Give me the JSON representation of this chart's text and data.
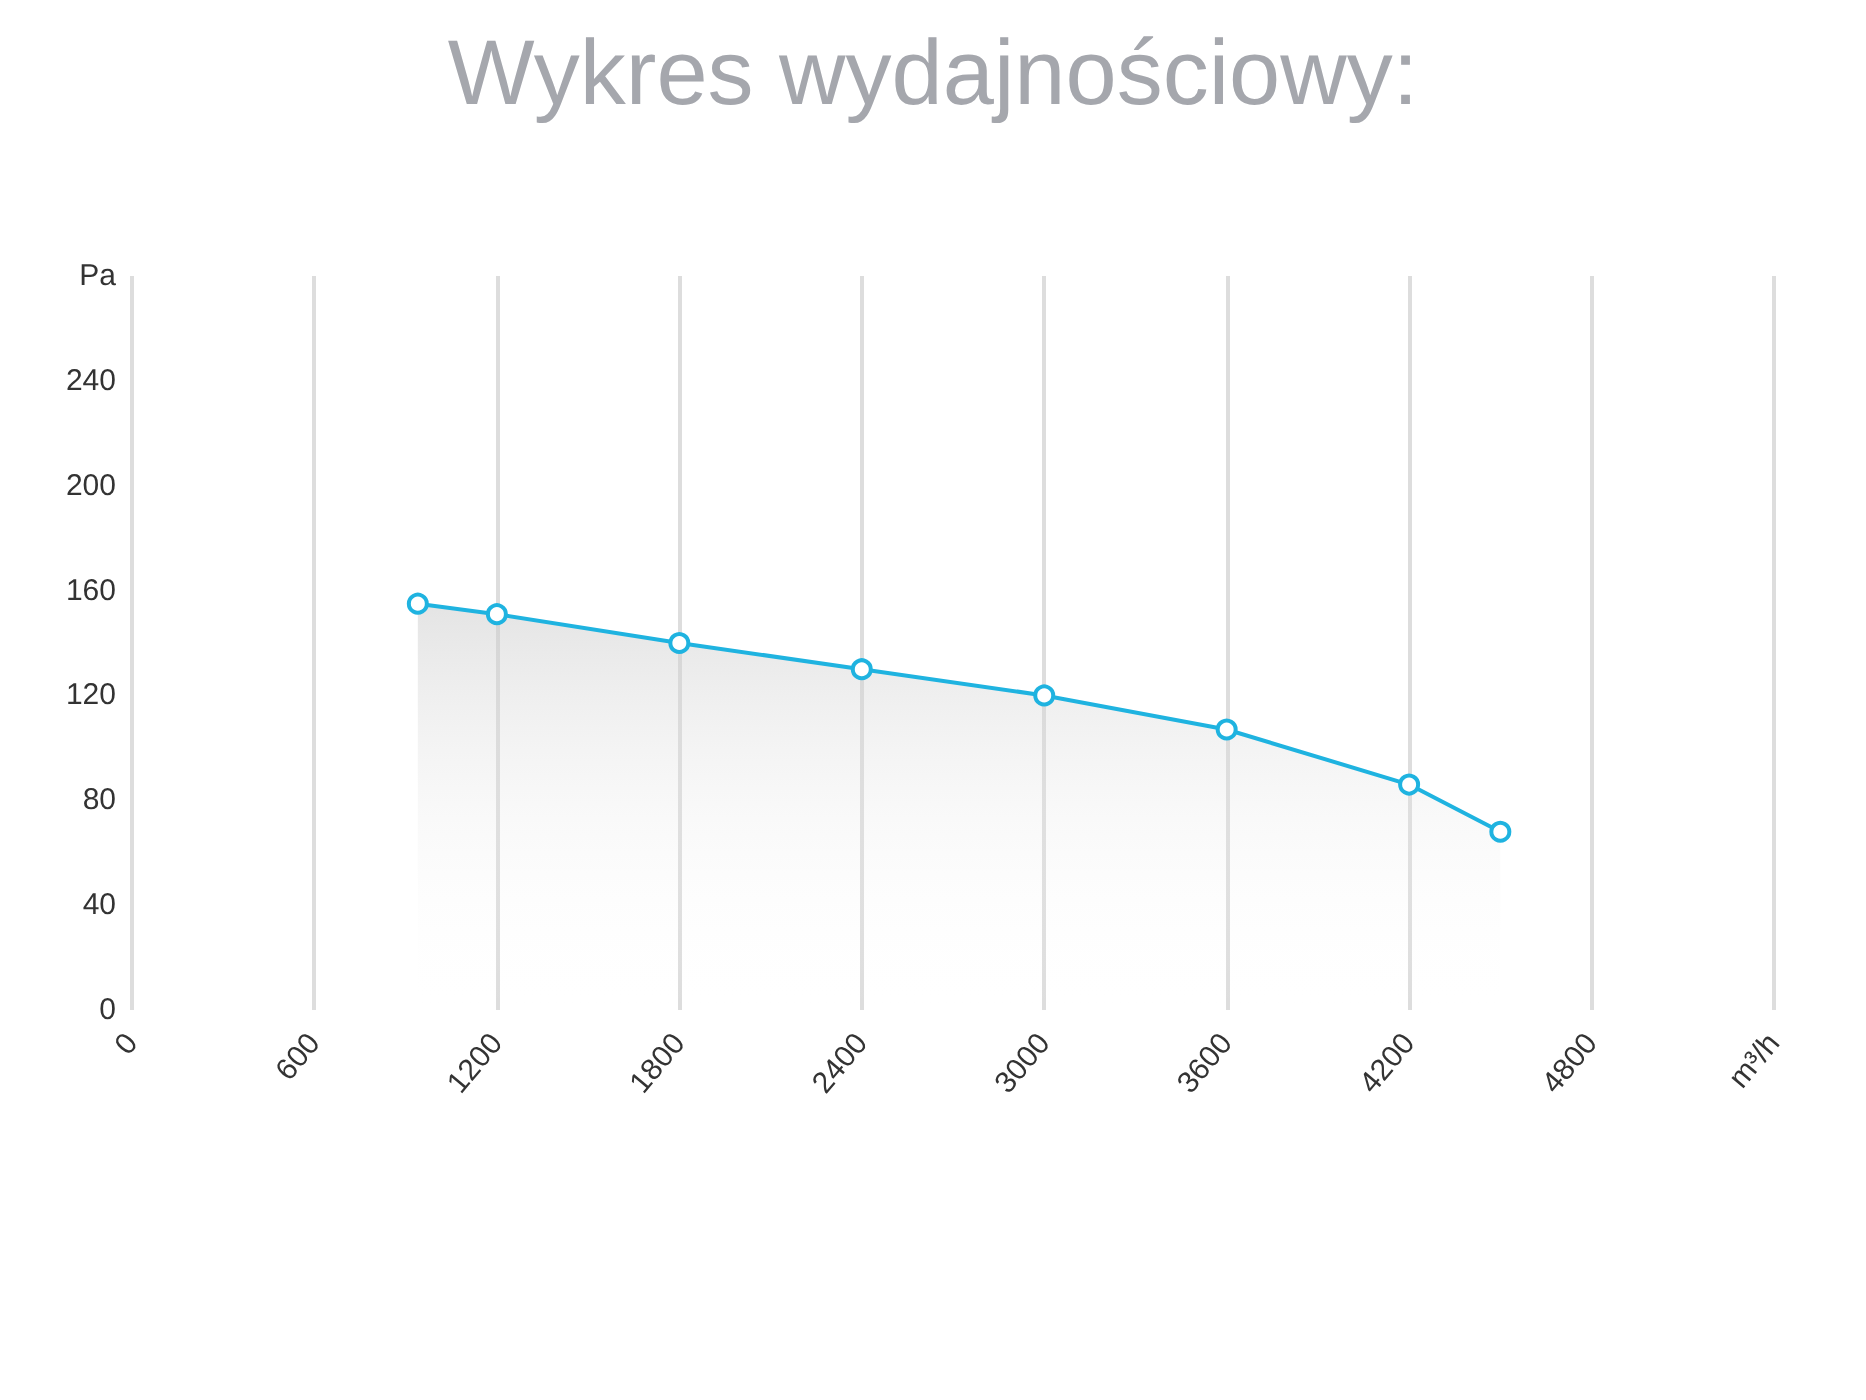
{
  "chart_data": {
    "type": "area",
    "title": "Wykres wydajnościowy:",
    "series": [
      {
        "color": "#1fb3e0",
        "x": [
          940,
          1200,
          1800,
          2400,
          3000,
          3600,
          4200,
          4500
        ],
        "values": [
          155,
          151,
          140,
          130,
          120,
          107,
          86,
          68
        ]
      }
    ],
    "xlim": [
      0,
      5400
    ],
    "xticks": [
      0,
      600,
      1200,
      1800,
      2400,
      3000,
      3600,
      4200,
      4800,
      {
        "value": 5400,
        "label": "m³/h"
      }
    ],
    "ylim": [
      0,
      280
    ],
    "yticks": [
      0,
      40,
      80,
      120,
      160,
      200,
      240,
      {
        "value": 280,
        "label": "Pa"
      }
    ],
    "grid": "x",
    "marker": "circle"
  }
}
